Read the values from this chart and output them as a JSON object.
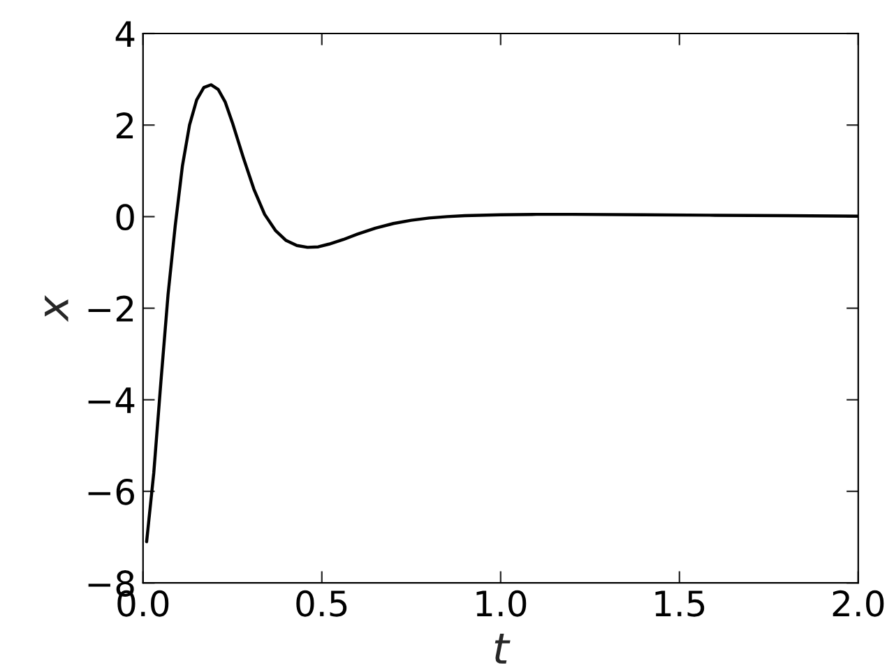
{
  "chart_data": {
    "type": "line",
    "xlabel": "t",
    "ylabel": "x",
    "x": [
      0.01,
      0.03,
      0.05,
      0.07,
      0.09,
      0.11,
      0.13,
      0.15,
      0.17,
      0.19,
      0.21,
      0.23,
      0.25,
      0.28,
      0.31,
      0.34,
      0.37,
      0.4,
      0.43,
      0.46,
      0.49,
      0.52,
      0.56,
      0.6,
      0.65,
      0.7,
      0.75,
      0.8,
      0.85,
      0.9,
      1.0,
      1.1,
      1.2,
      1.4,
      1.6,
      1.8,
      2.0
    ],
    "series": [
      {
        "color": "#000000",
        "values": [
          -7.1,
          -5.6,
          -3.6,
          -1.7,
          -0.2,
          1.1,
          2.0,
          2.55,
          2.82,
          2.88,
          2.78,
          2.5,
          2.05,
          1.3,
          0.6,
          0.05,
          -0.3,
          -0.52,
          -0.63,
          -0.67,
          -0.66,
          -0.6,
          -0.5,
          -0.38,
          -0.25,
          -0.15,
          -0.08,
          -0.03,
          0.0,
          0.02,
          0.04,
          0.05,
          0.05,
          0.04,
          0.03,
          0.02,
          0.01
        ]
      }
    ],
    "xlim": [
      0,
      2
    ],
    "ylim": [
      -8,
      4
    ],
    "xticks": [
      {
        "value": 0,
        "label": "0.0"
      },
      0.5,
      {
        "value": 1,
        "label": "1.0"
      },
      1.5,
      {
        "value": 2,
        "label": "2.0"
      }
    ],
    "yticks": [
      {
        "value": -8,
        "label": "−8"
      },
      {
        "value": -6,
        "label": "−6"
      },
      {
        "value": -4,
        "label": "−4"
      },
      {
        "value": -2,
        "label": "−2"
      },
      0,
      2,
      4
    ],
    "grid": false,
    "marker": "none",
    "line_style": "solid"
  }
}
